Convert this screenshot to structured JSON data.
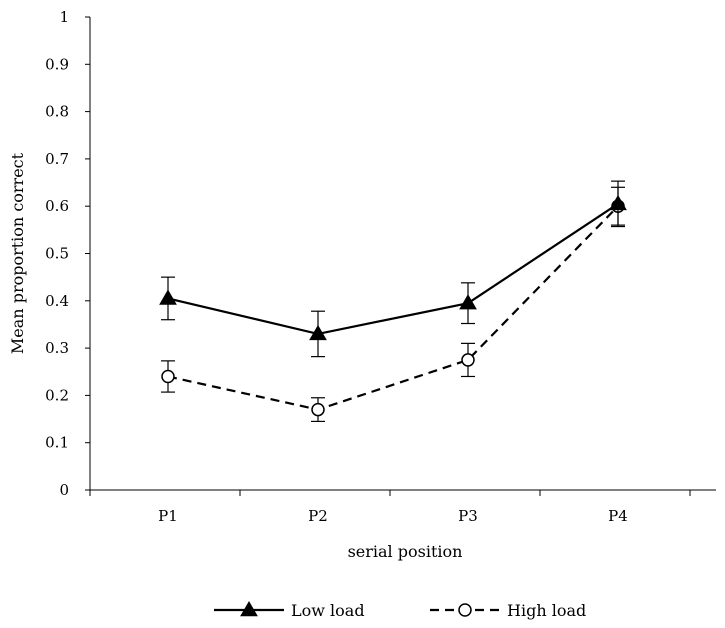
{
  "chart_data": {
    "type": "line",
    "title": "",
    "xlabel": "serial position",
    "ylabel": "Mean proportion correct",
    "categories": [
      "P1",
      "P2",
      "P3",
      "P4"
    ],
    "ylim": [
      0,
      1
    ],
    "yticks": [
      0,
      0.1,
      0.2,
      0.3,
      0.4,
      0.5,
      0.6,
      0.7,
      0.8,
      0.9,
      1
    ],
    "ytick_labels": [
      "0",
      "0.1",
      "0.2",
      "0.3",
      "0.4",
      "0.5",
      "0.6",
      "0.7",
      "0.8",
      "0.9",
      "1"
    ],
    "grid": false,
    "legend_position": "bottom",
    "series": [
      {
        "name": "Low load",
        "values": [
          0.405,
          0.33,
          0.395,
          0.605
        ],
        "error": [
          0.045,
          0.048,
          0.043,
          0.048
        ],
        "marker": "filled-triangle",
        "line_style": "solid",
        "color": "#000000"
      },
      {
        "name": "High load",
        "values": [
          0.24,
          0.17,
          0.275,
          0.6
        ],
        "error": [
          0.033,
          0.025,
          0.035,
          0.04
        ],
        "marker": "open-circle",
        "line_style": "dashed",
        "color": "#000000"
      }
    ]
  }
}
